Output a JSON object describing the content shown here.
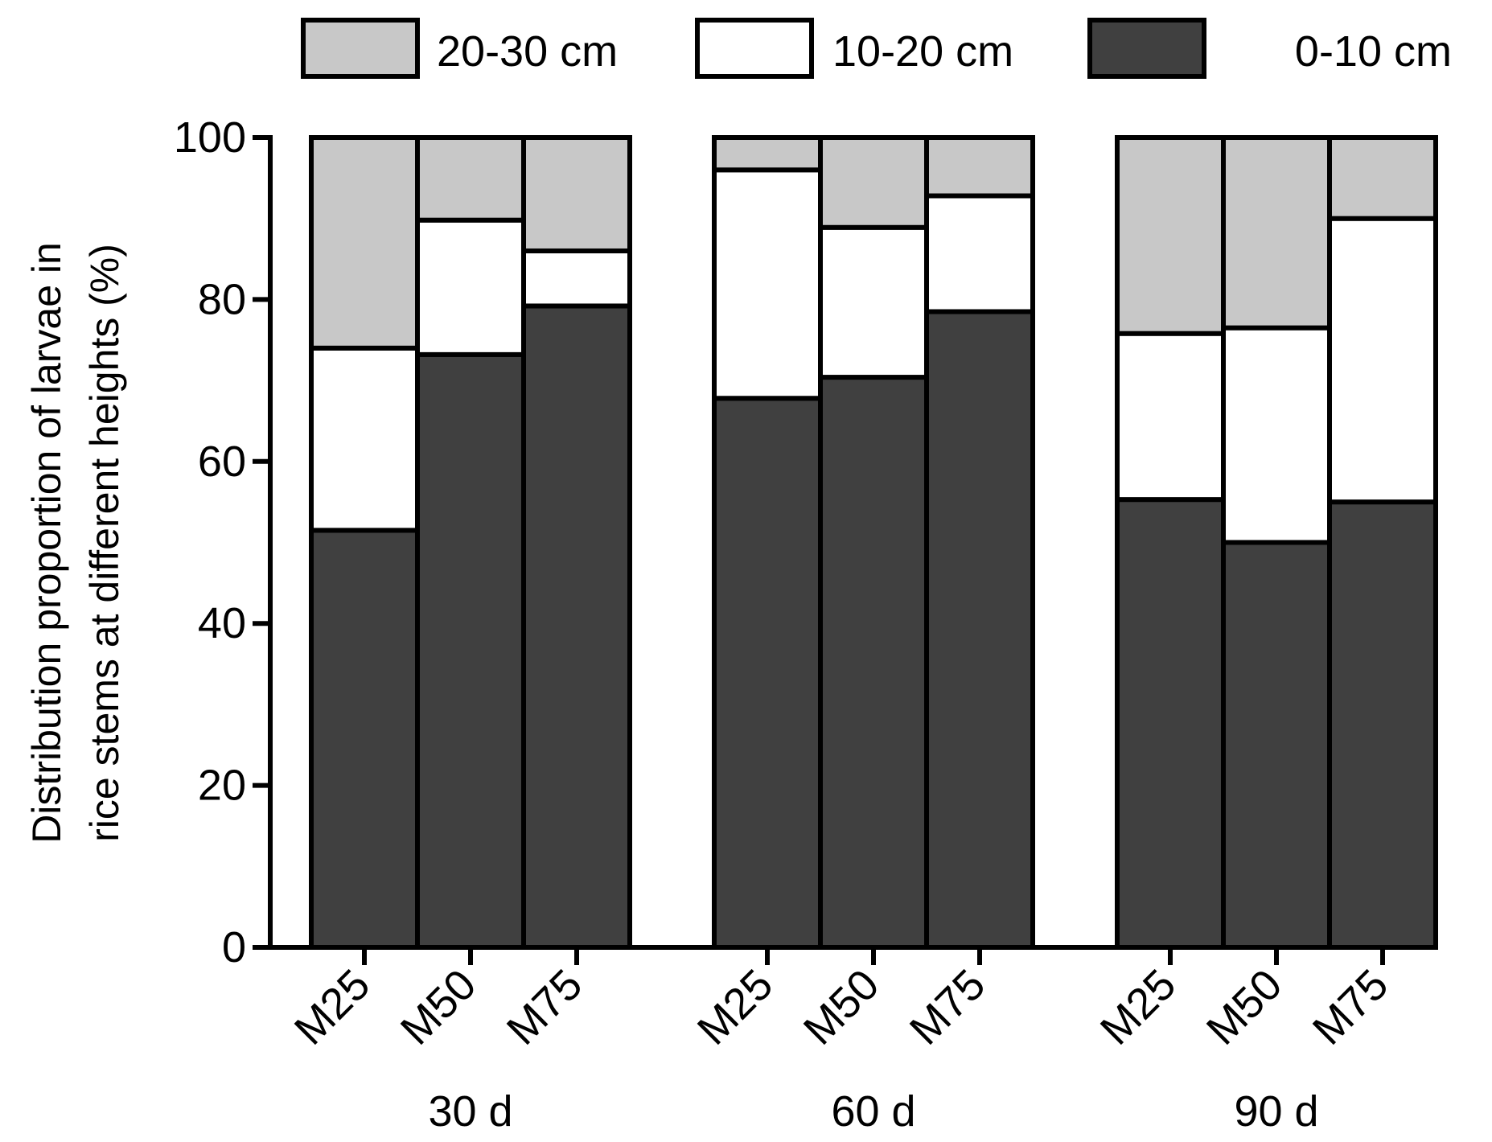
{
  "chart_data": {
    "type": "bar",
    "stacked": true,
    "ylabel_line1": "Distribution proportion of larvae in",
    "ylabel_line2": "rice stems at different heights (%)",
    "ylim": [
      0,
      100
    ],
    "yticks": [
      0,
      20,
      40,
      60,
      80,
      100
    ],
    "groups": [
      "30 d",
      "60 d",
      "90 d"
    ],
    "categories": [
      "M25",
      "M50",
      "M75"
    ],
    "legend_position": "top",
    "series": [
      {
        "name": "0-10 cm",
        "color": "#404040",
        "values": [
          [
            51.5,
            73.2,
            79.2
          ],
          [
            67.8,
            70.4,
            78.5
          ],
          [
            55.3,
            50.0,
            55.0
          ]
        ]
      },
      {
        "name": "10-20 cm",
        "color": "#ffffff",
        "values": [
          [
            22.5,
            16.6,
            6.8
          ],
          [
            28.2,
            18.5,
            14.3
          ],
          [
            20.5,
            26.5,
            35.0
          ]
        ]
      },
      {
        "name": "20-30 cm",
        "color": "#c8c8c8",
        "values": [
          [
            26.0,
            10.2,
            14.0
          ],
          [
            4.0,
            11.1,
            7.2
          ],
          [
            24.2,
            23.5,
            10.0
          ]
        ]
      }
    ],
    "legend_order": [
      "20-30 cm",
      "10-20 cm",
      "0-10 cm"
    ]
  }
}
